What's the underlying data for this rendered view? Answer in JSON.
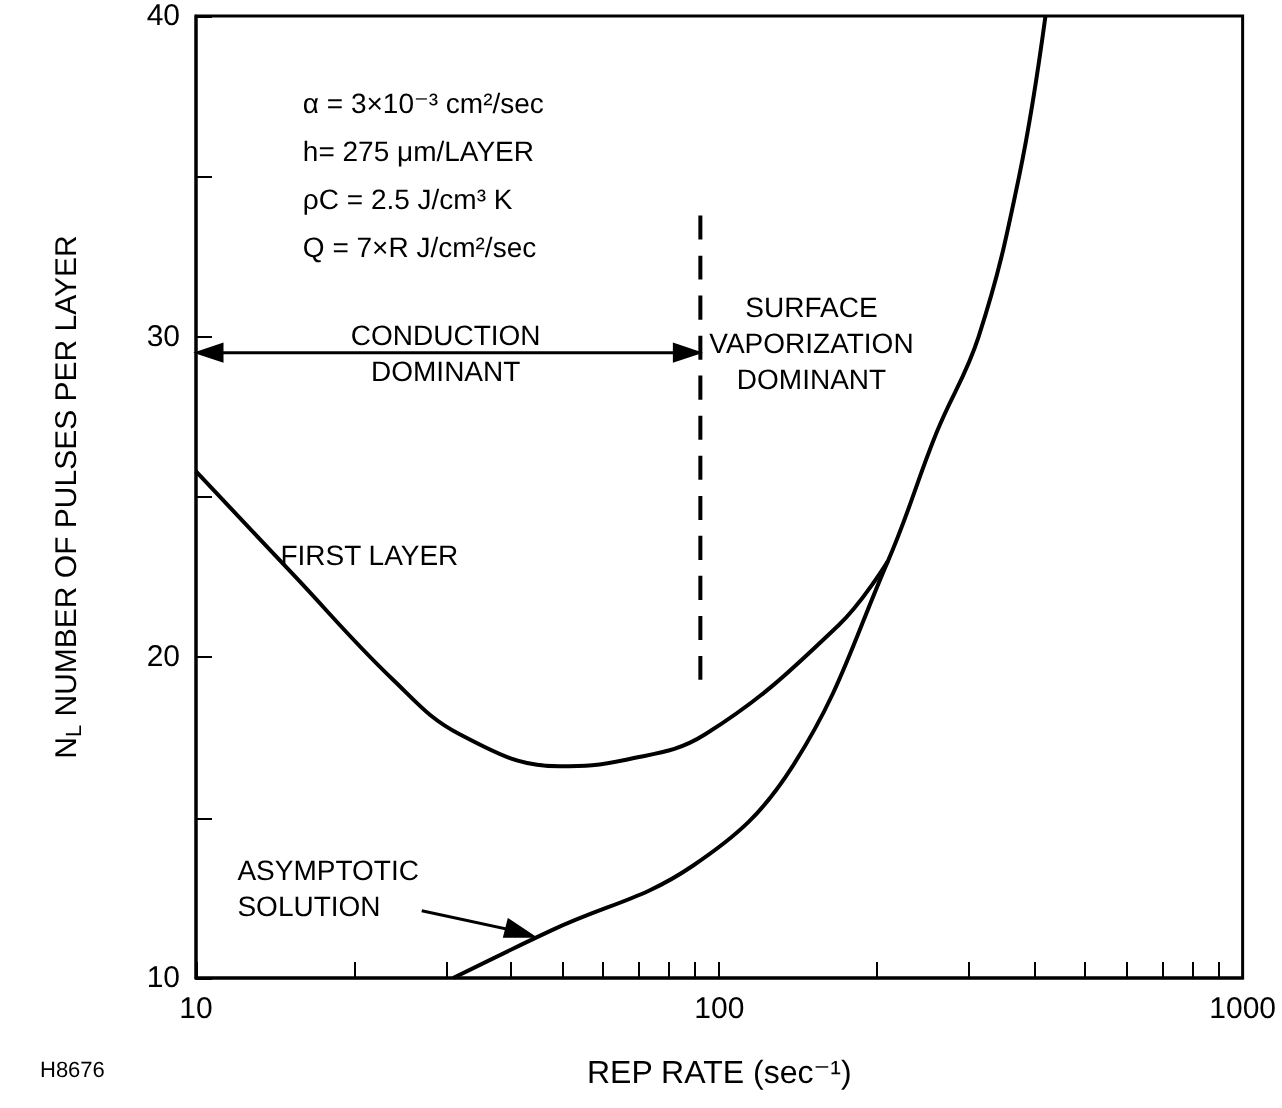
{
  "chart_data": {
    "type": "line",
    "xlabel": "REP RATE (sec⁻¹)",
    "ylabel": "N$_{L}$ NUMBER OF PULSES PER LAYER",
    "log": "x",
    "xlim": [
      10,
      1000
    ],
    "ylim": [
      10,
      40
    ],
    "xticks": [
      10,
      {
        "value": 20,
        "label": null
      },
      {
        "value": 30,
        "label": null
      },
      {
        "value": 40,
        "label": null
      },
      {
        "value": 50,
        "label": null
      },
      {
        "value": 60,
        "label": null
      },
      {
        "value": 70,
        "label": null
      },
      {
        "value": 80,
        "label": null
      },
      {
        "value": 90,
        "label": null
      },
      100,
      {
        "value": 200,
        "label": null
      },
      {
        "value": 300,
        "label": null
      },
      {
        "value": 400,
        "label": null
      },
      {
        "value": 500,
        "label": null
      },
      {
        "value": 600,
        "label": null
      },
      {
        "value": 700,
        "label": null
      },
      {
        "value": 800,
        "label": null
      },
      {
        "value": 900,
        "label": null
      },
      1000
    ],
    "yticks": [
      10,
      {
        "value": 15,
        "label": null
      },
      20,
      {
        "value": 25,
        "label": null
      },
      30,
      {
        "value": 35,
        "label": null
      },
      40
    ],
    "grid": false,
    "legend": false,
    "marker": "none",
    "line_style": "solid",
    "series": [
      {
        "name": "FIRST LAYER",
        "color": "#000000",
        "x": [
          10,
          15.3,
          23.8,
          31.9,
          49.5,
          66,
          94,
          169,
          210
        ],
        "values": [
          25.8,
          22.6,
          19.3,
          17.6,
          16.6,
          16.8,
          17.6,
          21,
          23
        ]
      },
      {
        "name": "ASYMPTOTIC\nSOLUTION",
        "color": "#000000",
        "x": [
          31,
          48,
          89,
          138,
          210,
          260,
          313,
          374,
          420
        ],
        "values": [
          10,
          11.5,
          13.5,
          16.6,
          23,
          27,
          30,
          35,
          40
        ]
      },
      {
        "color": "#000000",
        "line_style": "dashed",
        "x": [
          92,
          92
        ],
        "values": [
          19.3,
          33.8
        ]
      }
    ],
    "annotations": [
      "α = 3×10⁻³ cm²/sec",
      "h= 275 μm/LAYER",
      "ρC = 2.5 J/cm³ K",
      "Q = 7×R J/cm²/sec",
      "CONDUCTION\nDOMINANT",
      "SURFACE\nVAPORIZATION\nDOMINANT",
      "H8676"
    ]
  }
}
